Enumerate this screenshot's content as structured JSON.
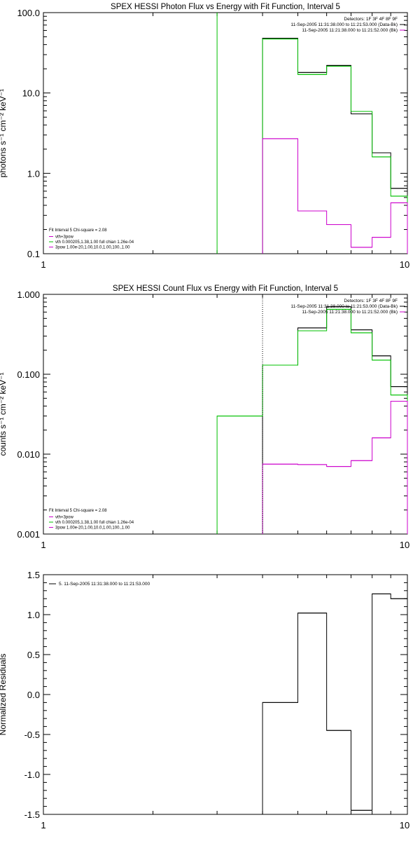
{
  "chart_data": [
    {
      "type": "line",
      "title": "SPEX HESSI Photon Flux vs Energy with Fit Function, Interval 5",
      "ylabel": "photons s⁻¹ cm⁻² keV⁻¹",
      "xlabel": "",
      "x_scale": "log",
      "y_scale": "log",
      "xlim": [
        1,
        10
      ],
      "ylim": [
        0.1,
        100
      ],
      "x_ticks": [
        1,
        10
      ],
      "x_tick_labels": [
        "1",
        "10"
      ],
      "y_ticks": [
        0.1,
        1,
        10,
        100
      ],
      "y_tick_labels": [
        "0.1",
        "1.0",
        "10.0",
        "100.0"
      ],
      "grid": false,
      "legend_top": [
        "Detectors: 1F 3F 4F 8F 9F",
        "11-Sep-2005 11:31:38.000 to 11:21:53.000 (Data-Bk)",
        "11-Sep-2005 11:21:38.000 to 11:21:52.000 (Bk)"
      ],
      "legend_bottom": [
        "Fit Interval 5   Chi-square = 2.08",
        "vth+3pow",
        "vth 0.000205,1.38,1.00  full chian 1.26e-04",
        "3pow 1.00e-20,1.00,10.0,1.00,100.,1.00"
      ],
      "series": [
        {
          "style": "black",
          "edges": [
            4,
            5,
            6,
            7,
            8,
            9,
            10
          ],
          "values": [
            48,
            18,
            22,
            5.5,
            1.8,
            0.65
          ]
        },
        {
          "style": "green",
          "edges": [
            4,
            5,
            6,
            7,
            8,
            9,
            10
          ],
          "values": [
            47,
            17,
            21.5,
            5.9,
            1.6,
            0.52
          ],
          "verticals": [
            3
          ]
        },
        {
          "style": "magenta",
          "edges": [
            4,
            5,
            6,
            7,
            8,
            9,
            10
          ],
          "values": [
            2.7,
            0.34,
            0.23,
            0.12,
            0.16,
            0.43
          ]
        }
      ]
    },
    {
      "type": "line",
      "title": "SPEX HESSI Count Flux vs Energy with Fit Function, Interval 5",
      "ylabel": "counts s⁻¹ cm⁻² keV⁻¹",
      "xlabel": "",
      "x_scale": "log",
      "y_scale": "log",
      "xlim": [
        1,
        10
      ],
      "ylim": [
        0.001,
        1
      ],
      "x_ticks": [
        1,
        10
      ],
      "x_tick_labels": [
        "1",
        "10"
      ],
      "y_ticks": [
        0.001,
        0.01,
        0.1,
        1
      ],
      "y_tick_labels": [
        "0.001",
        "0.010",
        "0.100",
        "1.000"
      ],
      "grid": false,
      "legend_top": [
        "Detectors: 1F 3F 4F 8F 9F",
        "11-Sep-2005 11:31:38.000 to 11:21:53.000 (Data-Bk)",
        "11-Sep-2005 11:21:38.000 to 11:21:52.000 (Bk)"
      ],
      "legend_bottom": [
        "Fit Interval 5   Chi-square = 2.08",
        "vth+3pow",
        "vth 0.000205,1.38,1.00  full chian 1.26e-04",
        "3pow 1.00e-20,1.00,10.0,1.00,100.,1.00"
      ],
      "series": [
        {
          "style": "black",
          "edges": [
            4,
            5,
            6,
            7,
            8,
            9,
            10
          ],
          "values": [
            0.13,
            0.38,
            0.7,
            0.36,
            0.17,
            0.07
          ]
        },
        {
          "style": "green",
          "edges": [
            3,
            4,
            5,
            6,
            7,
            8,
            9,
            10
          ],
          "values": [
            0.03,
            0.13,
            0.35,
            0.65,
            0.33,
            0.15,
            0.055
          ]
        },
        {
          "style": "magenta",
          "edges": [
            4,
            5,
            6,
            7,
            8,
            9,
            10
          ],
          "values": [
            0.0075,
            0.0074,
            0.007,
            0.0083,
            0.016,
            0.046
          ]
        },
        {
          "style": "dotted",
          "edges": [
            4,
            4
          ],
          "values": [
            1
          ]
        }
      ]
    },
    {
      "type": "line",
      "title": "",
      "ylabel": "Normalized Residuals",
      "xlabel": "",
      "x_scale": "log",
      "y_scale": "linear",
      "xlim": [
        1,
        10
      ],
      "ylim": [
        -1.5,
        1.5
      ],
      "x_ticks": [
        1,
        10
      ],
      "x_tick_labels": [
        "1",
        "10"
      ],
      "y_ticks": [
        -1.5,
        -1.0,
        -0.5,
        0.0,
        0.5,
        1.0,
        1.5
      ],
      "y_tick_labels": [
        "-1.5",
        "-1.0",
        "-0.5",
        "0.0",
        "0.5",
        "1.0",
        "1.5"
      ],
      "grid": false,
      "legend_top": [
        "5. 11-Sep-2005 11:31:38.000 to 11:21:53.000"
      ],
      "legend_bottom": [],
      "series": [
        {
          "style": "black",
          "edges": [
            4,
            5,
            6,
            7,
            8,
            9,
            10
          ],
          "values": [
            -0.1,
            1.02,
            -0.45,
            -1.45,
            1.26,
            1.2
          ]
        }
      ]
    }
  ]
}
